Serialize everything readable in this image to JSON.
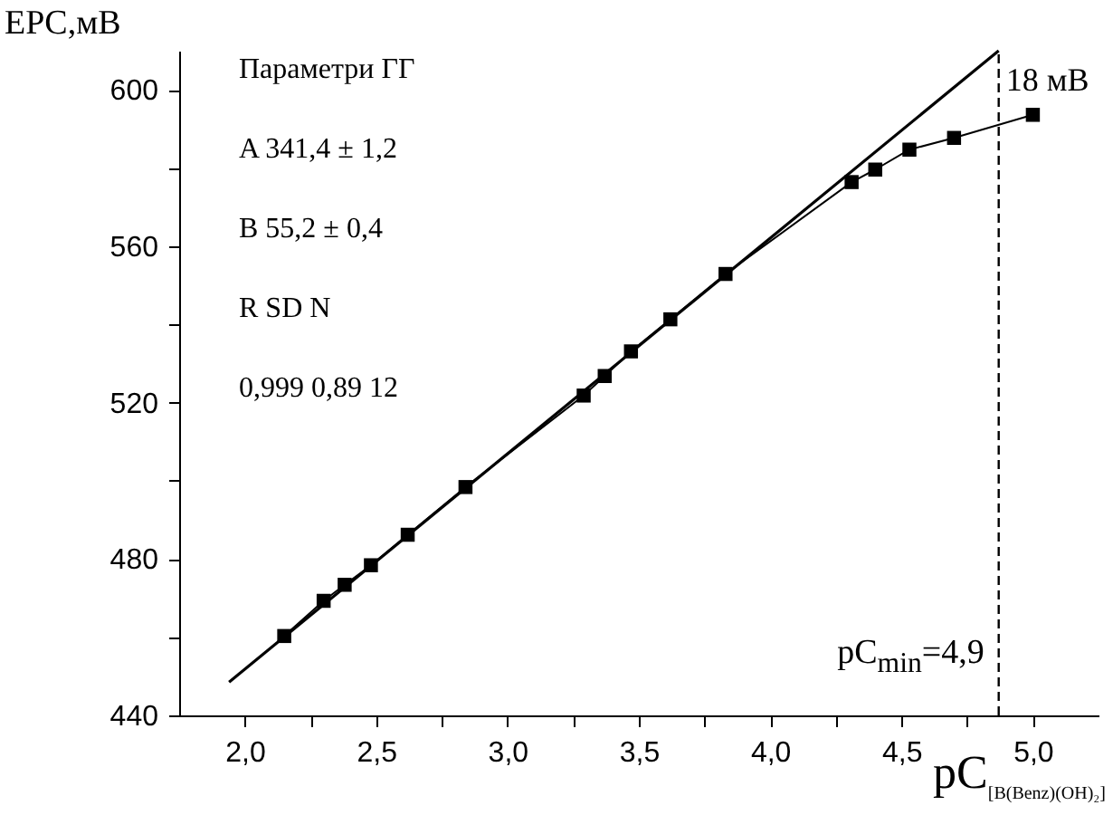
{
  "chart_data": {
    "type": "line",
    "xlabel": "pC$_{[B(Benz)(OH)₂]}$",
    "ylabel": "EPC,мВ",
    "xlim": [
      1.75,
      5.25
    ],
    "ylim": [
      440,
      610
    ],
    "xticks": [
      {
        "value": 2,
        "label": "2,0"
      },
      {
        "value": 2.25,
        "label": null
      },
      {
        "value": 2.5,
        "label": "2,5"
      },
      {
        "value": 2.75,
        "label": null
      },
      {
        "value": 3,
        "label": "3,0"
      },
      {
        "value": 3.25,
        "label": null
      },
      {
        "value": 3.5,
        "label": "3,5"
      },
      {
        "value": 3.75,
        "label": null
      },
      {
        "value": 4,
        "label": "4,0"
      },
      {
        "value": 4.25,
        "label": null
      },
      {
        "value": 4.5,
        "label": "4,5"
      },
      {
        "value": 4.75,
        "label": null
      },
      {
        "value": 5,
        "label": "5,0"
      }
    ],
    "yticks": [
      440,
      {
        "value": 460,
        "label": null
      },
      480,
      {
        "value": 500,
        "label": null
      },
      520,
      {
        "value": 540,
        "label": null
      },
      560,
      {
        "value": 580,
        "label": null
      },
      600
    ],
    "grid": false,
    "series": [
      {
        "color": "#000000",
        "x": [
          1.94,
          4.87
        ],
        "values": [
          448.5,
          610
        ]
      },
      {
        "marker": "square",
        "color": "#000000",
        "x": [
          2.15,
          2.3,
          2.38,
          2.48,
          2.62,
          2.84,
          3.29,
          3.37,
          3.47,
          3.62,
          3.83,
          4.31,
          4.4,
          4.53,
          4.7,
          5.0
        ],
        "values": [
          460.3,
          469.3,
          473.4,
          478.4,
          486.2,
          498.4,
          521.8,
          526.8,
          533.1,
          541.3,
          552.9,
          576.4,
          579.6,
          584.7,
          587.7,
          593.6
        ]
      }
    ],
    "ref_lines": [
      {
        "axis": "x",
        "value": 4.87,
        "label": "pC$_{min}$=4,9",
        "line_style": "dashed"
      }
    ],
    "annotations": [
      "Параметри ГГ",
      "A 341,4 ± 1,2",
      "B 55,2 ± 0,4",
      "R SD N",
      "0,999 0,89 12",
      "18 мВ"
    ]
  }
}
